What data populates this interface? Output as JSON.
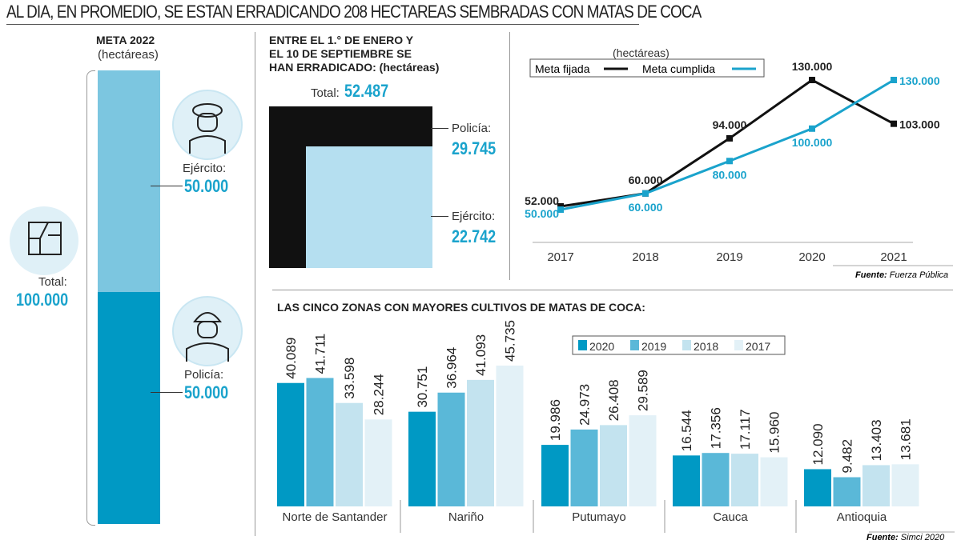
{
  "title": "AL DIA, EN PROMEDIO, SE ESTAN ERRADICANDO 208 HECTAREAS SEMBRADAS CON MATAS DE COCA",
  "meta": {
    "heading": "META 2022",
    "unit": "(hectáreas)",
    "ejercito_label": "Ejército:",
    "ejercito_value": "50.000",
    "policia_label": "Policía:",
    "policia_value": "50.000",
    "total_label": "Total:",
    "total_value": "100.000",
    "icons": [
      "soldier-icon",
      "police-officer-icon",
      "map-icon"
    ],
    "colors": {
      "ejercito": "#7cc6e0",
      "policia": "#0099c4"
    }
  },
  "erradicado": {
    "heading_1": "ENTRE EL 1.° DE ENERO Y",
    "heading_2": "EL 10 DE SEPTIEMBRE SE",
    "heading_3": "HAN ERRADICADO: (hectáreas)",
    "total_label": "Total:",
    "total_value": "52.487",
    "policia_label": "Policía:",
    "policia_value": "29.745",
    "ejercito_label": "Ejército:",
    "ejercito_value": "22.742"
  },
  "chart_data": [
    {
      "type": "line",
      "title": "",
      "unit": "(hectáreas)",
      "x": [
        "2017",
        "2018",
        "2019",
        "2020",
        "2021"
      ],
      "series": [
        {
          "name": "Meta fijada",
          "color": "#111111",
          "values": [
            52000,
            60000,
            94000,
            130000,
            103000
          ],
          "labels": [
            "52.000",
            "60.000",
            "94.000",
            "130.000",
            "103.000"
          ]
        },
        {
          "name": "Meta cumplida",
          "color": "#1aa3cc",
          "values": [
            50000,
            60000,
            80000,
            100000,
            130000
          ],
          "labels": [
            "50.000",
            "60.000",
            "80.000",
            "100.000",
            "130.000"
          ]
        }
      ],
      "source_label": "Fuente:",
      "source": "Fuerza Pública",
      "legend": "top-left"
    },
    {
      "type": "bar",
      "title": "LAS CINCO ZONAS CON MAYORES CULTIVOS DE MATAS DE COCA:",
      "categories": [
        "Norte de Santander",
        "Nariño",
        "Putumayo",
        "Cauca",
        "Antioquia"
      ],
      "series": [
        {
          "name": "2020",
          "color": "#0099c4",
          "values": [
            40089,
            30751,
            19986,
            16544,
            12090
          ],
          "labels": [
            "40.089",
            "30.751",
            "19.986",
            "16.544",
            "12.090"
          ]
        },
        {
          "name": "2019",
          "color": "#5ab8d8",
          "values": [
            41711,
            36964,
            24973,
            17356,
            9482
          ],
          "labels": [
            "41.711",
            "36.964",
            "24.973",
            "17.356",
            "9.482"
          ]
        },
        {
          "name": "2018",
          "color": "#c3e3ef",
          "values": [
            33598,
            41093,
            26408,
            17117,
            13403
          ],
          "labels": [
            "33.598",
            "41.093",
            "26.408",
            "17.117",
            "13.403"
          ]
        },
        {
          "name": "2017",
          "color": "#e3f1f7",
          "values": [
            28244,
            45735,
            29589,
            15960,
            13681
          ],
          "labels": [
            "28.244",
            "45.735",
            "29.589",
            "15.960",
            "13.681"
          ]
        }
      ],
      "source_label": "Fuente:",
      "source": "Simci 2020",
      "legend": "top-right"
    }
  ]
}
